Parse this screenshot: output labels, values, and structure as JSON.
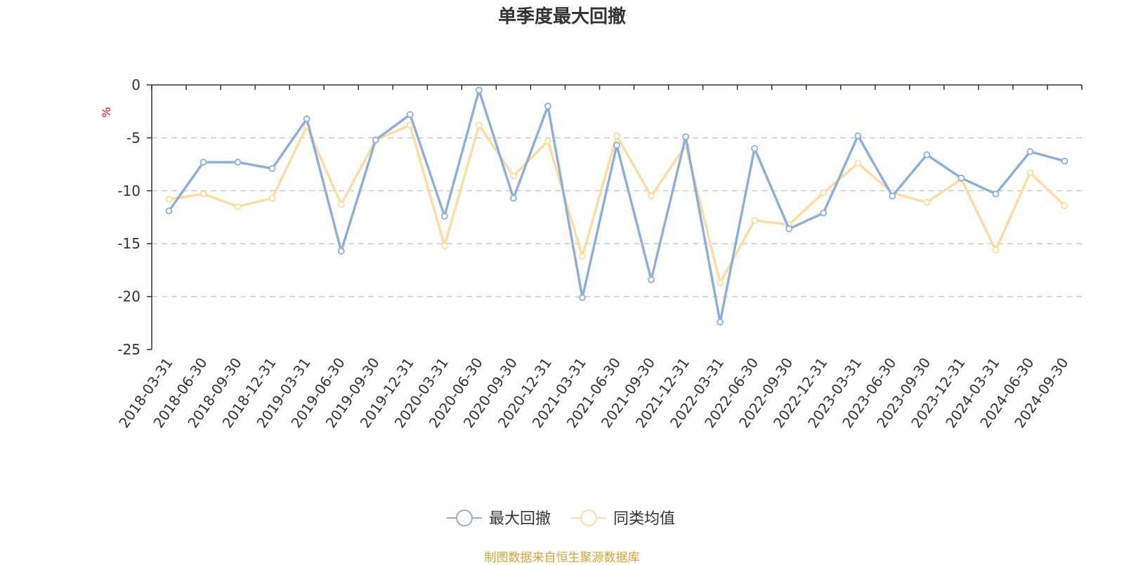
{
  "chart_data": {
    "type": "line",
    "title": "单季度最大回撤",
    "ylabel": "%",
    "ylim": [
      -25,
      0
    ],
    "yticks": [
      0,
      -5,
      -10,
      -15,
      -20,
      -25
    ],
    "grid": true,
    "legend_position": "bottom",
    "categories": [
      "2018-03-31",
      "2018-06-30",
      "2018-09-30",
      "2018-12-31",
      "2019-03-31",
      "2019-06-30",
      "2019-09-30",
      "2019-12-31",
      "2020-03-31",
      "2020-06-30",
      "2020-09-30",
      "2020-12-31",
      "2021-03-31",
      "2021-06-30",
      "2021-09-30",
      "2021-12-31",
      "2022-03-31",
      "2022-06-30",
      "2022-09-30",
      "2022-12-31",
      "2023-03-31",
      "2023-06-30",
      "2023-09-30",
      "2023-12-31",
      "2024-03-31",
      "2024-06-30",
      "2024-09-30"
    ],
    "series": [
      {
        "name": "最大回撤",
        "color": "#8eaedc",
        "values": [
          -11.9,
          -7.3,
          -7.3,
          -7.9,
          -3.2,
          -15.7,
          -5.2,
          -2.8,
          -12.4,
          -0.5,
          -10.7,
          -2.0,
          -20.1,
          -5.7,
          -18.4,
          -4.9,
          -22.4,
          -6.0,
          -13.6,
          -12.1,
          -4.8,
          -10.5,
          -6.6,
          -8.8,
          -10.3,
          -6.3,
          -7.2
        ]
      },
      {
        "name": "同类均值",
        "color": "#fcdca0",
        "values": [
          -10.8,
          -10.3,
          -11.5,
          -10.7,
          -3.9,
          -11.3,
          -5.2,
          -3.8,
          -15.2,
          -3.8,
          -8.6,
          -5.3,
          -16.2,
          -4.8,
          -10.5,
          -5.7,
          -18.7,
          -12.8,
          -13.2,
          -10.2,
          -7.4,
          -10.2,
          -11.1,
          -8.9,
          -15.6,
          -8.3,
          -11.4
        ]
      }
    ]
  },
  "footer": {
    "text": "制图数据来自恒生聚源数据库",
    "color": "#d4a437"
  },
  "colors": {
    "axis": "#333333",
    "grid": "#cccccc",
    "unit": "#ff0000"
  }
}
